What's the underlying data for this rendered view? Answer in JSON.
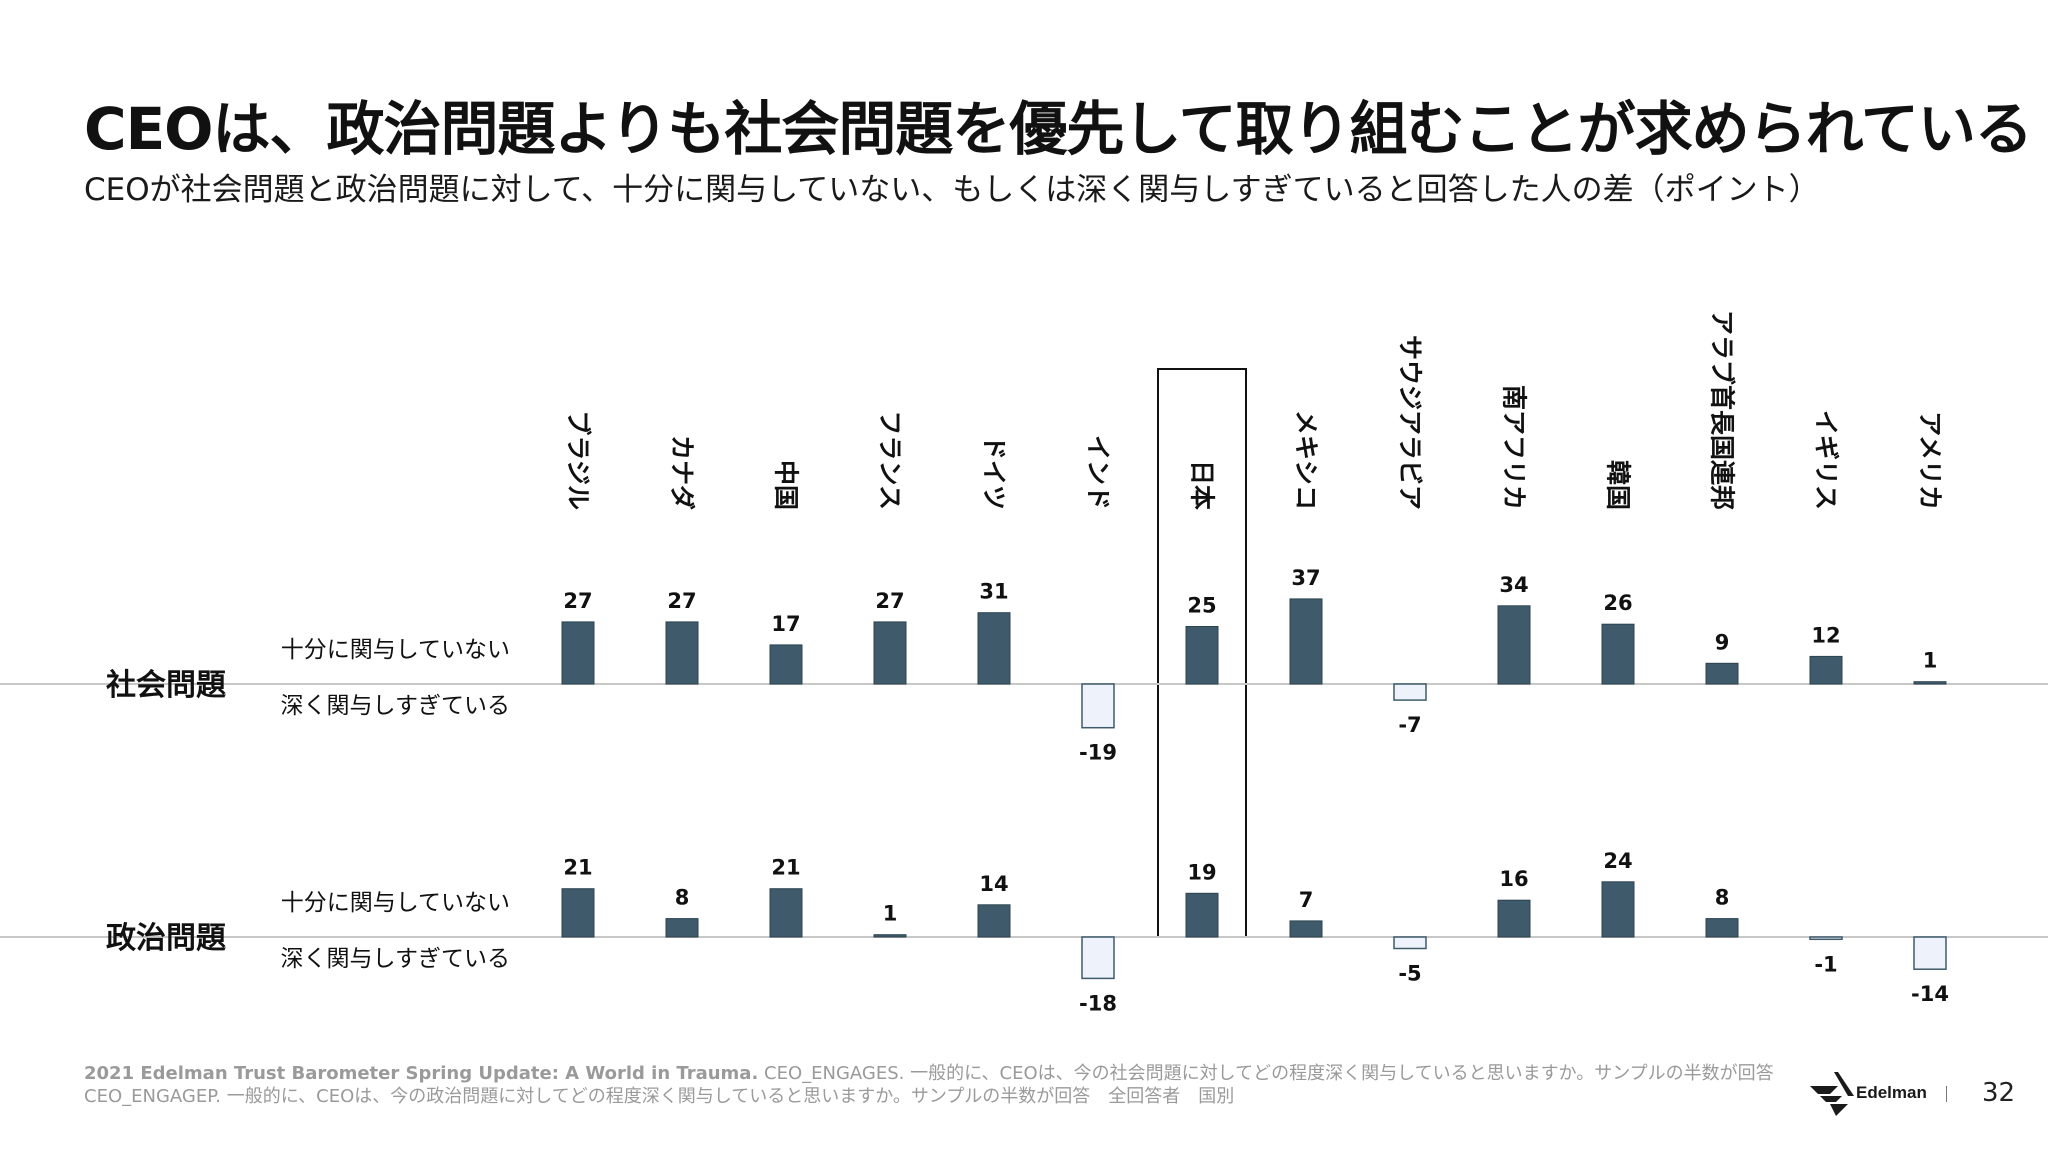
{
  "title": "CEOは、政治問題よりも社会問題を優先して取り組むことが求められている",
  "subtitle": "CEOが社会問題と政治問題に対して、十分に関与していない、もしくは深く関与しすぎていると回答した人の差（ポイント）",
  "chart_data": {
    "type": "bar",
    "categories": [
      "ブラジル",
      "カナダ",
      "中国",
      "フランス",
      "ドイツ",
      "インド",
      "日本",
      "メキシコ",
      "サウジアラビア",
      "南アフリカ",
      "韓国",
      "アラブ首長国連邦",
      "イギリス",
      "アメリカ"
    ],
    "highlight": "日本",
    "up_label": "十分に関与していない",
    "down_label": "深く関与しすぎている",
    "series": [
      {
        "name": "社会問題",
        "values": [
          27,
          27,
          17,
          27,
          31,
          -19,
          25,
          37,
          -7,
          34,
          26,
          9,
          12,
          1
        ]
      },
      {
        "name": "政治問題",
        "values": [
          21,
          8,
          21,
          1,
          14,
          -18,
          19,
          7,
          -5,
          16,
          24,
          8,
          -1,
          -14
        ]
      }
    ],
    "colors": {
      "positive": "#3f5b6b",
      "negative_fill": "#eef3fb",
      "negative_stroke": "#3f5b6b"
    }
  },
  "footer": {
    "source_bold": "2021 Edelman Trust Barometer Spring Update: A World in Trauma.",
    "source_line1": " CEO_ENGAGES. 一般的に、CEOは、今の社会問題に対してどの程度深く関与していると思いますか。サンプルの半数が回答",
    "source_line2": "CEO_ENGAGEP. 一般的に、CEOは、今の政治問題に対してどの程度深く関与していると思いますか。サンプルの半数が回答　全回答者　国別"
  },
  "brand": "Edelman",
  "page_number": "32"
}
